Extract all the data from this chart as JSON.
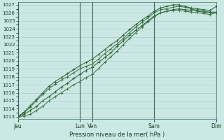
{
  "xlabel": "Pression niveau de la mer( hPa )",
  "ylim": [
    1013,
    1027
  ],
  "yticks": [
    1013,
    1014,
    1015,
    1016,
    1017,
    1018,
    1019,
    1020,
    1021,
    1022,
    1023,
    1024,
    1025,
    1026,
    1027
  ],
  "xtick_labels": [
    "Jeu",
    "Lun",
    "Ven",
    "Sam",
    "Dim"
  ],
  "xtick_positions": [
    0,
    30,
    36,
    66,
    96
  ],
  "xlim": [
    0,
    96
  ],
  "bg_color": "#cce8e4",
  "grid_major_color": "#aaccc8",
  "grid_minor_color": "#bcdad6",
  "line_color_dark": "#2a5c35",
  "line_color_med": "#3a7040",
  "lines": [
    {
      "x": [
        0,
        3,
        6,
        9,
        12,
        15,
        18,
        21,
        24,
        27,
        30,
        33,
        36,
        39,
        42,
        45,
        48,
        51,
        54,
        57,
        60,
        63,
        66,
        69,
        72,
        75,
        78,
        81,
        84,
        87,
        90,
        93,
        96
      ],
      "y": [
        1013.0,
        1013.3,
        1013.8,
        1014.3,
        1015.0,
        1015.5,
        1016.1,
        1016.7,
        1017.2,
        1017.8,
        1018.3,
        1018.8,
        1019.2,
        1019.8,
        1020.4,
        1021.0,
        1021.8,
        1022.5,
        1023.2,
        1023.8,
        1024.4,
        1025.0,
        1025.6,
        1026.0,
        1026.2,
        1026.4,
        1026.5,
        1026.4,
        1026.3,
        1026.2,
        1026.1,
        1026.0,
        1026.0
      ]
    },
    {
      "x": [
        0,
        3,
        6,
        9,
        12,
        15,
        18,
        21,
        24,
        27,
        30,
        33,
        36,
        39,
        42,
        45,
        48,
        51,
        54,
        57,
        60,
        63,
        66,
        69,
        72,
        75,
        78,
        81,
        84,
        87,
        90,
        93,
        96
      ],
      "y": [
        1013.0,
        1013.5,
        1014.2,
        1015.0,
        1015.8,
        1016.5,
        1017.1,
        1017.6,
        1018.0,
        1018.5,
        1019.0,
        1019.3,
        1019.6,
        1020.2,
        1020.9,
        1021.5,
        1022.1,
        1022.8,
        1023.5,
        1024.2,
        1024.8,
        1025.4,
        1026.0,
        1026.4,
        1026.5,
        1026.7,
        1026.8,
        1026.7,
        1026.5,
        1026.3,
        1026.2,
        1026.1,
        1026.1
      ]
    },
    {
      "x": [
        0,
        3,
        6,
        9,
        12,
        15,
        18,
        21,
        24,
        27,
        30,
        33,
        36,
        39,
        42,
        45,
        48,
        51,
        54,
        57,
        60,
        63,
        66,
        69,
        72,
        75,
        78,
        81,
        84,
        87,
        90,
        93,
        96
      ],
      "y": [
        1013.0,
        1013.6,
        1014.4,
        1015.2,
        1016.0,
        1016.8,
        1017.4,
        1017.9,
        1018.4,
        1018.9,
        1019.4,
        1019.8,
        1020.2,
        1020.8,
        1021.4,
        1022.0,
        1022.5,
        1023.2,
        1023.9,
        1024.5,
        1025.1,
        1025.6,
        1026.2,
        1026.6,
        1026.8,
        1027.0,
        1027.0,
        1026.8,
        1026.6,
        1026.5,
        1026.4,
        1026.3,
        1026.8
      ]
    },
    {
      "x": [
        0,
        3,
        6,
        9,
        12,
        15,
        18,
        21,
        24,
        27,
        30,
        33,
        36,
        39,
        42,
        45,
        48,
        51,
        54,
        57,
        60,
        63,
        66,
        69,
        72,
        75,
        78,
        81,
        84,
        87,
        90,
        93,
        96
      ],
      "y": [
        1013.0,
        1013.1,
        1013.3,
        1013.8,
        1014.3,
        1015.0,
        1015.5,
        1016.0,
        1016.5,
        1017.0,
        1017.4,
        1017.9,
        1018.3,
        1019.0,
        1019.8,
        1020.5,
        1021.2,
        1022.0,
        1022.8,
        1023.5,
        1024.2,
        1024.9,
        1025.5,
        1026.0,
        1026.2,
        1026.3,
        1026.3,
        1026.2,
        1026.1,
        1026.0,
        1025.9,
        1025.8,
        1026.0
      ]
    }
  ]
}
